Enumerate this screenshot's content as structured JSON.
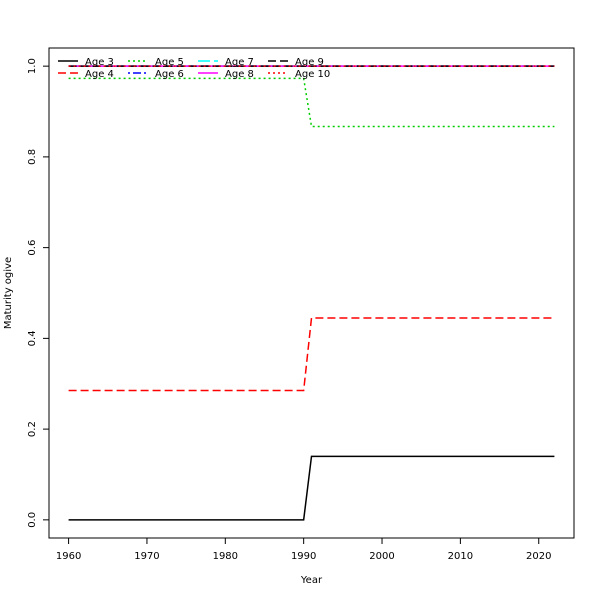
{
  "chart_data": {
    "type": "line",
    "title": "",
    "xlabel": "Year",
    "ylabel": "Maturity ogive",
    "xlim": [
      1957.5,
      2024.5
    ],
    "ylim": [
      -0.04,
      1.04
    ],
    "x_ticks": [
      1960,
      1970,
      1980,
      1990,
      2000,
      2010,
      2020
    ],
    "y_ticks": [
      0.0,
      0.2,
      0.4,
      0.6,
      0.8,
      1.0
    ],
    "x_tick_labels": [
      "1960",
      "1970",
      "1980",
      "1990",
      "2000",
      "2010",
      "2020"
    ],
    "y_tick_labels": [
      "0.0",
      "0.2",
      "0.4",
      "0.6",
      "0.8",
      "1.0"
    ],
    "grid": false,
    "legend_position": "top-left",
    "series": [
      {
        "name": "Age 3",
        "color": "#000000",
        "dash": "solid",
        "points": [
          [
            1960,
            0.0
          ],
          [
            1990,
            0.0
          ],
          [
            1991,
            0.14
          ],
          [
            2022,
            0.14
          ]
        ]
      },
      {
        "name": "Age 4",
        "color": "#ff0000",
        "dash": "dashed",
        "points": [
          [
            1960,
            0.285
          ],
          [
            1990,
            0.285
          ],
          [
            1991,
            0.445
          ],
          [
            2022,
            0.445
          ]
        ]
      },
      {
        "name": "Age 5",
        "color": "#00cd00",
        "dash": "dotted",
        "points": [
          [
            1960,
            0.973
          ],
          [
            1990,
            0.973
          ],
          [
            1991,
            0.867
          ],
          [
            2022,
            0.867
          ]
        ]
      },
      {
        "name": "Age 6",
        "color": "#0000ff",
        "dash": "dotdash",
        "points": [
          [
            1960,
            1.0
          ],
          [
            2022,
            1.0
          ]
        ]
      },
      {
        "name": "Age 7",
        "color": "#00ffff",
        "dash": "longdash",
        "points": [
          [
            1960,
            1.0
          ],
          [
            2022,
            1.0
          ]
        ]
      },
      {
        "name": "Age 8",
        "color": "#ff00ff",
        "dash": "solid",
        "points": [
          [
            1960,
            1.0
          ],
          [
            2022,
            1.0
          ]
        ]
      },
      {
        "name": "Age 9",
        "color": "#000000",
        "dash": "dashed",
        "points": [
          [
            1960,
            1.0
          ],
          [
            2022,
            1.0
          ]
        ]
      },
      {
        "name": "Age 10",
        "color": "#ff0000",
        "dash": "dotted",
        "points": [
          [
            1960,
            1.0
          ],
          [
            2022,
            1.0
          ]
        ]
      }
    ]
  }
}
